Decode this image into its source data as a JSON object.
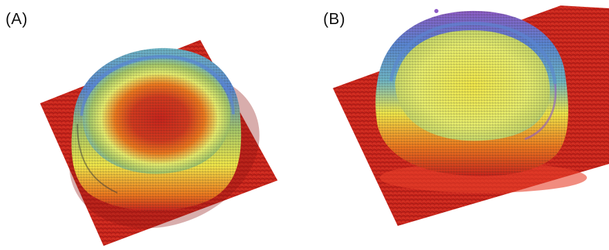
{
  "panels": [
    {
      "label": "(A)"
    },
    {
      "label": "(B)"
    }
  ],
  "colors": {
    "base_red": "#c8241c",
    "dark_red": "#8e1410",
    "orange": "#ee7a1e",
    "yellow": "#f2e84a",
    "pale_yellow": "#e8ee6e",
    "green": "#a6c86a",
    "teal": "#6fb6c6",
    "blue": "#5a86d2",
    "purple": "#8e5cc6"
  }
}
